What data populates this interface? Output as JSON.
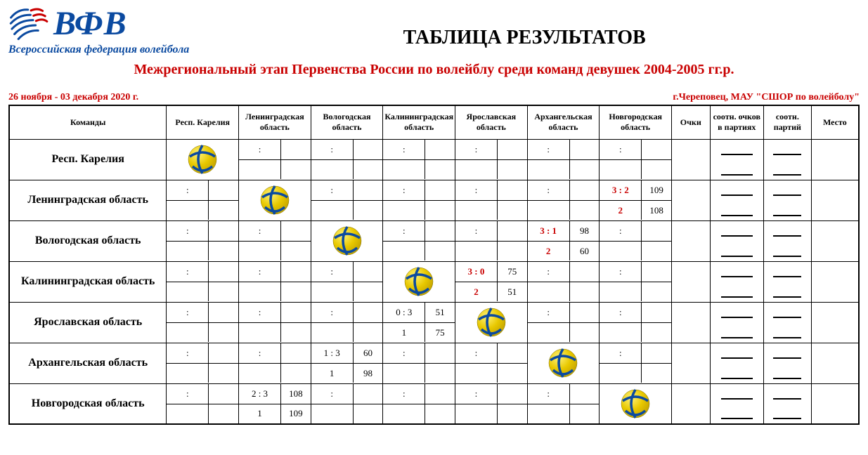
{
  "logo": {
    "text": "ВФВ",
    "subtitle": "Всероссийская федерация волейбола",
    "primary_color": "#0b4aa0",
    "accent_color": "#c90000"
  },
  "title": "ТАБЛИЦА РЕЗУЛЬТАТОВ",
  "subtitle": "Межрегиональный этап Первенства России по волейблу среди команд девушек 2004-2005 гг.р.",
  "meta_left": "26 ноября - 03 декабря 2020 г.",
  "meta_right": "г.Череповец, МАУ \"СШОР по волейболу\"",
  "headers": {
    "teams": "Команды",
    "ochki": "Очки",
    "ratio_points": "соотн. очков в партиях",
    "ratio_sets": "соотн. партий",
    "place": "Место"
  },
  "opp_headers": [
    "Респ. Карелия",
    "Ленинградская область",
    "Вологодская область",
    "Калининградская область",
    "Ярославская область",
    "Архангельская область",
    "Новгородская область"
  ],
  "teams": [
    "Респ. Карелия",
    "Ленинградская область",
    "Вологодская область",
    "Калининградская область",
    "Ярославская область",
    "Архангельская область",
    "Новгородская область"
  ],
  "cells": {
    "r1": {
      "c2": {
        "top": ":"
      },
      "c3": {
        "top": ":"
      },
      "c4": {
        "top": ":"
      },
      "c5": {
        "top": ":"
      },
      "c6": {
        "top": ":"
      },
      "c7": {
        "top": ":"
      }
    },
    "r2": {
      "c1": {
        "top": ":"
      },
      "c3": {
        "top": ":"
      },
      "c4": {
        "top": ":"
      },
      "c5": {
        "top": ":"
      },
      "c6": {
        "top": ":"
      },
      "c7": {
        "top": "3  :  2",
        "tr": "109",
        "bot": "2",
        "br": "108",
        "red": true
      }
    },
    "r3": {
      "c1": {
        "top": ":"
      },
      "c2": {
        "top": ":"
      },
      "c4": {
        "top": ":"
      },
      "c5": {
        "top": ":"
      },
      "c6": {
        "top": "3  :  1",
        "tr": "98",
        "bot": "2",
        "br": "60",
        "red": true
      },
      "c7": {
        "top": ":"
      }
    },
    "r4": {
      "c1": {
        "top": ":"
      },
      "c2": {
        "top": ":"
      },
      "c3": {
        "top": ":"
      },
      "c5": {
        "top": "3  :  0",
        "tr": "75",
        "bot": "2",
        "br": "51",
        "red": true
      },
      "c6": {
        "top": ":"
      },
      "c7": {
        "top": ":"
      }
    },
    "r5": {
      "c1": {
        "top": ":"
      },
      "c2": {
        "top": ":"
      },
      "c3": {
        "top": ":"
      },
      "c4": {
        "top": "0  :  3",
        "tr": "51",
        "bot": "1",
        "br": "75"
      },
      "c6": {
        "top": ":"
      },
      "c7": {
        "top": ":"
      }
    },
    "r6": {
      "c1": {
        "top": ":"
      },
      "c2": {
        "top": ":"
      },
      "c3": {
        "top": "1  :  3",
        "tr": "60",
        "bot": "1",
        "br": "98"
      },
      "c4": {
        "top": ":"
      },
      "c5": {
        "top": ":"
      },
      "c7": {
        "top": ":"
      }
    },
    "r7": {
      "c1": {
        "top": ":"
      },
      "c2": {
        "top": "2  :  3",
        "tr": "108",
        "bot": "1",
        "br": "109"
      },
      "c3": {
        "top": ":"
      },
      "c4": {
        "top": ":"
      },
      "c5": {
        "top": ":"
      },
      "c6": {
        "top": ":"
      }
    }
  },
  "ball_colors": {
    "fill": "#e8c800",
    "shade": "#c9a900",
    "stripe": "#0b4aa0"
  }
}
